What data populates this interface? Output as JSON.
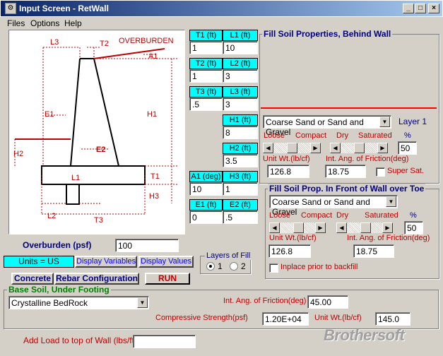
{
  "window": {
    "title": "Input Screen - RetWall",
    "icon_glyph": "⚙",
    "min": "_",
    "max": "□",
    "close": "×"
  },
  "menu": [
    "Files",
    "Options",
    "Help"
  ],
  "diagram": {
    "L3": "L3",
    "T2": "T2",
    "overburden": "OVERBURDEN",
    "A1": "A1",
    "E1": "E1",
    "H1": "H1",
    "H2": "H2",
    "E2": "E2",
    "L1": "L1",
    "T1": "T1",
    "H3": "H3",
    "L2": "L2",
    "T3": "T3"
  },
  "dims": [
    {
      "l1": "T1 (ft)",
      "v1": "1",
      "l2": "L1 (ft)",
      "v2": "10"
    },
    {
      "l1": "T2 (ft)",
      "v1": "1",
      "l2": "L2 (ft)",
      "v2": "3"
    },
    {
      "l1": "T3 (ft)",
      "v1": ".5",
      "l2": "L3 (ft)",
      "v2": "3"
    }
  ],
  "h1": {
    "label": "H1 (ft)",
    "value": "8"
  },
  "h2": {
    "label": "H2 (ft)",
    "value": "3.5"
  },
  "a1h3": {
    "l1": "A1 (deg)",
    "v1": "10",
    "l2": "H3 (ft)",
    "v2": "1"
  },
  "e1e2": {
    "l1": "E1 (ft)",
    "v1": "0",
    "l2": "E2 (ft)",
    "v2": ".5"
  },
  "overburden": {
    "label": "Overburden (psf)",
    "value": "100"
  },
  "units": "Units = US",
  "buttons": {
    "display_variables": "Display Variables",
    "display_values": "Display Values",
    "concrete": "Concrete",
    "rebar": "Rebar Configuration",
    "run": "RUN"
  },
  "layers": {
    "title": "Layers of Fill",
    "opt1": "1",
    "opt2": "2"
  },
  "behind": {
    "title": "Fill Soil Properties, Behind Wall",
    "soil": "Coarse Sand or Sand and Gravel",
    "layer": "Layer 1",
    "loose": "Loose",
    "compact": "Compact",
    "dry": "Dry",
    "saturated": "Saturated",
    "pct": "%",
    "pct_value": "50",
    "unitwt_label": "Unit Wt.(lb/cf)",
    "unitwt": "126.8",
    "friction_label": "Int. Ang. of Friction(deg)",
    "friction": "18.75",
    "super": "Super Sat."
  },
  "front": {
    "title": "Fill Soil Prop. In Front of Wall over Toe",
    "soil": "Coarse Sand or Sand and Gravel",
    "loose": "Loose",
    "compact": "Compact",
    "dry": "Dry",
    "saturated": "Saturated",
    "pct": "%",
    "pct_value": "50",
    "unitwt_label": "Unit Wt.(lb/cf)",
    "unitwt": "126.8",
    "friction_label": "Int. Ang. of Friction(deg)",
    "friction": "18.75",
    "inplace": "Inplace prior to backfill"
  },
  "base": {
    "title": "Base Soil, Under Footing",
    "soil": "Crystalline BedRock",
    "friction_label": "Int. Ang. of Friction(deg)",
    "friction": "45.00",
    "comp_label": "Compressive Strength(psf)",
    "comp": "1.20E+04",
    "unitwt_label": "Unit Wt.(lb/cf)",
    "unitwt": "145.0"
  },
  "load": {
    "label": "Add Load to top of Wall (lbs/ft):",
    "value": ""
  },
  "watermark": "Brothersoft"
}
